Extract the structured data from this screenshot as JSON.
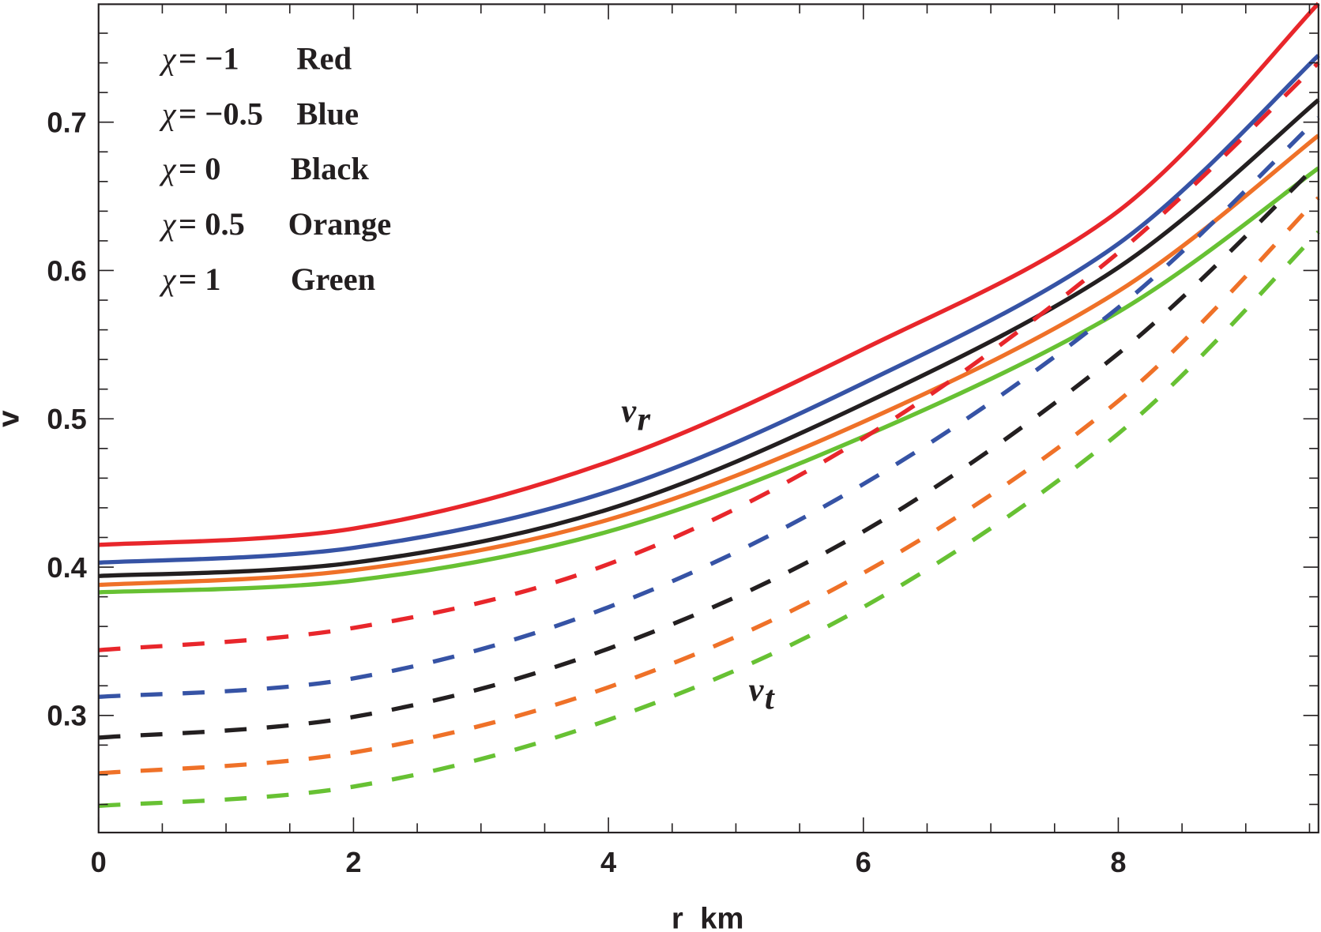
{
  "chart_data": {
    "type": "line",
    "title": "",
    "xlabel": "r  km",
    "ylabel": "v",
    "xlim": [
      0,
      9.57
    ],
    "ylim": [
      0.22,
      0.78
    ],
    "x_ticks": [
      0,
      2,
      4,
      6,
      8
    ],
    "x_tick_labels": [
      "0",
      "2",
      "4",
      "6",
      "8"
    ],
    "y_ticks": [
      0.3,
      0.4,
      0.5,
      0.6,
      0.7
    ],
    "y_tick_labels": [
      "0.3",
      "0.4",
      "0.5",
      "0.6",
      "0.7"
    ],
    "grid": false,
    "legend_placement": "top-left",
    "legend": [
      {
        "chi": "χ",
        "eq": " = −1",
        "name": "Red"
      },
      {
        "chi": "χ",
        "eq": " = −0.5",
        "name": "Blue"
      },
      {
        "chi": "χ",
        "eq": " = 0",
        "name": "Black"
      },
      {
        "chi": "χ",
        "eq": " = 0.5",
        "name": "Orange"
      },
      {
        "chi": "χ",
        "eq": " = 1",
        "name": "Green"
      }
    ],
    "annotations": [
      {
        "text": "v",
        "sub": "r",
        "r": 4.1,
        "v": 0.498
      },
      {
        "text": "v",
        "sub": "t",
        "r": 5.1,
        "v": 0.31
      }
    ],
    "x": [
      0,
      2,
      4,
      6,
      8,
      9.57
    ],
    "series": [
      {
        "name": "v_r χ=-1",
        "color": "#e8262b",
        "dash": false,
        "values": [
          0.415,
          0.426,
          0.471,
          0.547,
          0.64,
          0.78
        ]
      },
      {
        "name": "v_r χ=-0.5",
        "color": "#3653a5",
        "dash": false,
        "values": [
          0.403,
          0.413,
          0.451,
          0.524,
          0.618,
          0.745
        ]
      },
      {
        "name": "v_r χ=0",
        "color": "#231f20",
        "dash": false,
        "values": [
          0.394,
          0.403,
          0.439,
          0.51,
          0.602,
          0.715
        ]
      },
      {
        "name": "v_r χ=0.5",
        "color": "#ef7128",
        "dash": false,
        "values": [
          0.388,
          0.398,
          0.432,
          0.498,
          0.586,
          0.691
        ]
      },
      {
        "name": "v_r χ=1",
        "color": "#67c133",
        "dash": false,
        "values": [
          0.383,
          0.391,
          0.424,
          0.488,
          0.572,
          0.669
        ]
      },
      {
        "name": "v_t χ=-1",
        "color": "#e8262b",
        "dash": true,
        "values": [
          0.344,
          0.359,
          0.402,
          0.487,
          0.612,
          0.74
        ]
      },
      {
        "name": "v_t χ=-0.5",
        "color": "#3653a5",
        "dash": true,
        "values": [
          0.3125,
          0.325,
          0.373,
          0.456,
          0.575,
          0.703
        ]
      },
      {
        "name": "v_t χ=0",
        "color": "#231f20",
        "dash": true,
        "values": [
          0.285,
          0.299,
          0.345,
          0.424,
          0.544,
          0.672
        ]
      },
      {
        "name": "v_t χ=0.5",
        "color": "#ef7128",
        "dash": true,
        "values": [
          0.261,
          0.275,
          0.319,
          0.396,
          0.512,
          0.649
        ]
      },
      {
        "name": "v_t χ=1",
        "color": "#67c133",
        "dash": true,
        "values": [
          0.239,
          0.252,
          0.297,
          0.373,
          0.49,
          0.626
        ]
      }
    ]
  }
}
